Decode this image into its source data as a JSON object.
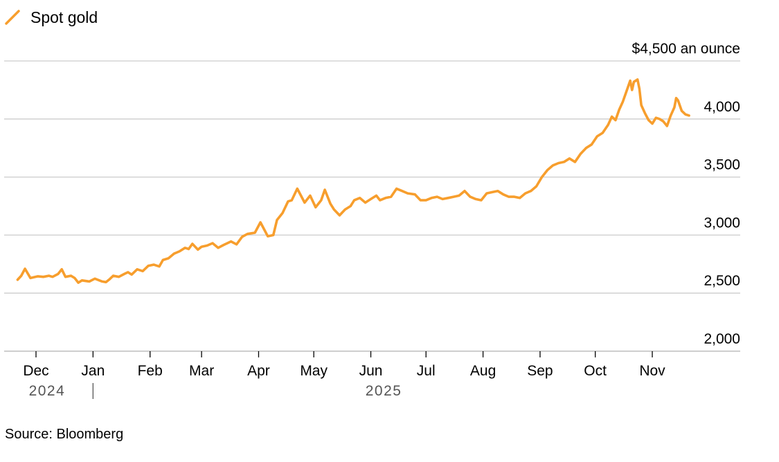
{
  "legend": {
    "label": "Spot gold",
    "icon": "orange-line-icon"
  },
  "source": "Source: Bloomberg",
  "chart_data": {
    "type": "line",
    "title": "",
    "xlabel": "",
    "ylabel": "",
    "y_unit_label": "$4,500 an ounce",
    "ylim": [
      2000,
      4500
    ],
    "yticks": [
      {
        "value": 4500,
        "label": "$4,500 an ounce"
      },
      {
        "value": 4000,
        "label": "4,000"
      },
      {
        "value": 3500,
        "label": "3,500"
      },
      {
        "value": 3000,
        "label": "3,000"
      },
      {
        "value": 2500,
        "label": "2,500"
      },
      {
        "value": 2000,
        "label": "2,000"
      }
    ],
    "xlim": [
      "2024-11-20",
      "2025-11-30"
    ],
    "xticks": [
      {
        "date": "2024-12-01",
        "label": "Dec"
      },
      {
        "date": "2025-01-01",
        "label": "Jan"
      },
      {
        "date": "2025-02-01",
        "label": "Feb"
      },
      {
        "date": "2025-03-01",
        "label": "Mar"
      },
      {
        "date": "2025-04-01",
        "label": "Apr"
      },
      {
        "date": "2025-05-01",
        "label": "May"
      },
      {
        "date": "2025-06-01",
        "label": "Jun"
      },
      {
        "date": "2025-07-01",
        "label": "Jul"
      },
      {
        "date": "2025-08-01",
        "label": "Aug"
      },
      {
        "date": "2025-09-01",
        "label": "Sep"
      },
      {
        "date": "2025-10-01",
        "label": "Oct"
      },
      {
        "date": "2025-11-01",
        "label": "Nov"
      }
    ],
    "year_labels": [
      {
        "date": "2024-12-07",
        "label": "2024"
      },
      {
        "date": "2025-06-08",
        "label": "2025"
      }
    ],
    "year_divider": "2025-01-01",
    "grid": true,
    "legend_position": "top-left",
    "series": [
      {
        "name": "Spot gold",
        "color": "#f79e2d",
        "points": [
          [
            "2024-11-21",
            2615
          ],
          [
            "2024-11-23",
            2650
          ],
          [
            "2024-11-25",
            2710
          ],
          [
            "2024-11-28",
            2630
          ],
          [
            "2024-12-02",
            2645
          ],
          [
            "2024-12-05",
            2640
          ],
          [
            "2024-12-08",
            2650
          ],
          [
            "2024-12-10",
            2640
          ],
          [
            "2024-12-13",
            2665
          ],
          [
            "2024-12-15",
            2705
          ],
          [
            "2024-12-17",
            2640
          ],
          [
            "2024-12-20",
            2650
          ],
          [
            "2024-12-22",
            2630
          ],
          [
            "2024-12-24",
            2590
          ],
          [
            "2024-12-26",
            2610
          ],
          [
            "2024-12-30",
            2600
          ],
          [
            "2025-01-02",
            2625
          ],
          [
            "2025-01-06",
            2600
          ],
          [
            "2025-01-08",
            2595
          ],
          [
            "2025-01-10",
            2620
          ],
          [
            "2025-01-12",
            2650
          ],
          [
            "2025-01-15",
            2640
          ],
          [
            "2025-01-18",
            2665
          ],
          [
            "2025-01-20",
            2680
          ],
          [
            "2025-01-22",
            2660
          ],
          [
            "2025-01-25",
            2705
          ],
          [
            "2025-01-28",
            2690
          ],
          [
            "2025-01-31",
            2735
          ],
          [
            "2025-02-03",
            2745
          ],
          [
            "2025-02-06",
            2730
          ],
          [
            "2025-02-08",
            2785
          ],
          [
            "2025-02-11",
            2800
          ],
          [
            "2025-02-14",
            2840
          ],
          [
            "2025-02-17",
            2860
          ],
          [
            "2025-02-20",
            2890
          ],
          [
            "2025-02-22",
            2880
          ],
          [
            "2025-02-24",
            2925
          ],
          [
            "2025-02-27",
            2875
          ],
          [
            "2025-03-01",
            2900
          ],
          [
            "2025-03-04",
            2910
          ],
          [
            "2025-03-07",
            2930
          ],
          [
            "2025-03-10",
            2890
          ],
          [
            "2025-03-13",
            2915
          ],
          [
            "2025-03-17",
            2945
          ],
          [
            "2025-03-20",
            2920
          ],
          [
            "2025-03-23",
            2985
          ],
          [
            "2025-03-26",
            3010
          ],
          [
            "2025-03-30",
            3020
          ],
          [
            "2025-04-02",
            3110
          ],
          [
            "2025-04-04",
            3050
          ],
          [
            "2025-04-06",
            2990
          ],
          [
            "2025-04-09",
            3000
          ],
          [
            "2025-04-11",
            3130
          ],
          [
            "2025-04-14",
            3190
          ],
          [
            "2025-04-17",
            3290
          ],
          [
            "2025-04-19",
            3300
          ],
          [
            "2025-04-22",
            3400
          ],
          [
            "2025-04-24",
            3340
          ],
          [
            "2025-04-26",
            3280
          ],
          [
            "2025-04-29",
            3340
          ],
          [
            "2025-05-02",
            3240
          ],
          [
            "2025-05-05",
            3300
          ],
          [
            "2025-05-07",
            3390
          ],
          [
            "2025-05-10",
            3270
          ],
          [
            "2025-05-12",
            3220
          ],
          [
            "2025-05-15",
            3170
          ],
          [
            "2025-05-18",
            3220
          ],
          [
            "2025-05-21",
            3250
          ],
          [
            "2025-05-23",
            3300
          ],
          [
            "2025-05-26",
            3320
          ],
          [
            "2025-05-29",
            3280
          ],
          [
            "2025-06-01",
            3310
          ],
          [
            "2025-06-04",
            3340
          ],
          [
            "2025-06-06",
            3300
          ],
          [
            "2025-06-09",
            3320
          ],
          [
            "2025-06-12",
            3330
          ],
          [
            "2025-06-15",
            3400
          ],
          [
            "2025-06-18",
            3380
          ],
          [
            "2025-06-21",
            3360
          ],
          [
            "2025-06-25",
            3350
          ],
          [
            "2025-06-28",
            3300
          ],
          [
            "2025-07-01",
            3300
          ],
          [
            "2025-07-04",
            3320
          ],
          [
            "2025-07-07",
            3330
          ],
          [
            "2025-07-10",
            3310
          ],
          [
            "2025-07-13",
            3320
          ],
          [
            "2025-07-16",
            3330
          ],
          [
            "2025-07-19",
            3340
          ],
          [
            "2025-07-22",
            3380
          ],
          [
            "2025-07-25",
            3330
          ],
          [
            "2025-07-28",
            3310
          ],
          [
            "2025-07-31",
            3300
          ],
          [
            "2025-08-03",
            3360
          ],
          [
            "2025-08-06",
            3370
          ],
          [
            "2025-08-09",
            3380
          ],
          [
            "2025-08-12",
            3350
          ],
          [
            "2025-08-15",
            3330
          ],
          [
            "2025-08-18",
            3330
          ],
          [
            "2025-08-21",
            3320
          ],
          [
            "2025-08-24",
            3360
          ],
          [
            "2025-08-27",
            3380
          ],
          [
            "2025-08-30",
            3420
          ],
          [
            "2025-09-02",
            3500
          ],
          [
            "2025-09-05",
            3560
          ],
          [
            "2025-09-08",
            3600
          ],
          [
            "2025-09-11",
            3620
          ],
          [
            "2025-09-14",
            3630
          ],
          [
            "2025-09-17",
            3660
          ],
          [
            "2025-09-20",
            3630
          ],
          [
            "2025-09-23",
            3700
          ],
          [
            "2025-09-26",
            3750
          ],
          [
            "2025-09-29",
            3780
          ],
          [
            "2025-10-02",
            3850
          ],
          [
            "2025-10-05",
            3880
          ],
          [
            "2025-10-08",
            3950
          ],
          [
            "2025-10-10",
            4020
          ],
          [
            "2025-10-12",
            3990
          ],
          [
            "2025-10-14",
            4080
          ],
          [
            "2025-10-16",
            4150
          ],
          [
            "2025-10-18",
            4240
          ],
          [
            "2025-10-20",
            4330
          ],
          [
            "2025-10-21",
            4250
          ],
          [
            "2025-10-22",
            4320
          ],
          [
            "2025-10-24",
            4340
          ],
          [
            "2025-10-25",
            4260
          ],
          [
            "2025-10-26",
            4120
          ],
          [
            "2025-10-28",
            4050
          ],
          [
            "2025-10-30",
            3990
          ],
          [
            "2025-11-01",
            3960
          ],
          [
            "2025-11-03",
            4010
          ],
          [
            "2025-11-05",
            4000
          ],
          [
            "2025-11-07",
            3980
          ],
          [
            "2025-11-09",
            3940
          ],
          [
            "2025-11-11",
            4030
          ],
          [
            "2025-11-13",
            4100
          ],
          [
            "2025-11-14",
            4180
          ],
          [
            "2025-11-15",
            4160
          ],
          [
            "2025-11-17",
            4070
          ],
          [
            "2025-11-19",
            4040
          ],
          [
            "2025-11-21",
            4030
          ]
        ]
      }
    ]
  }
}
